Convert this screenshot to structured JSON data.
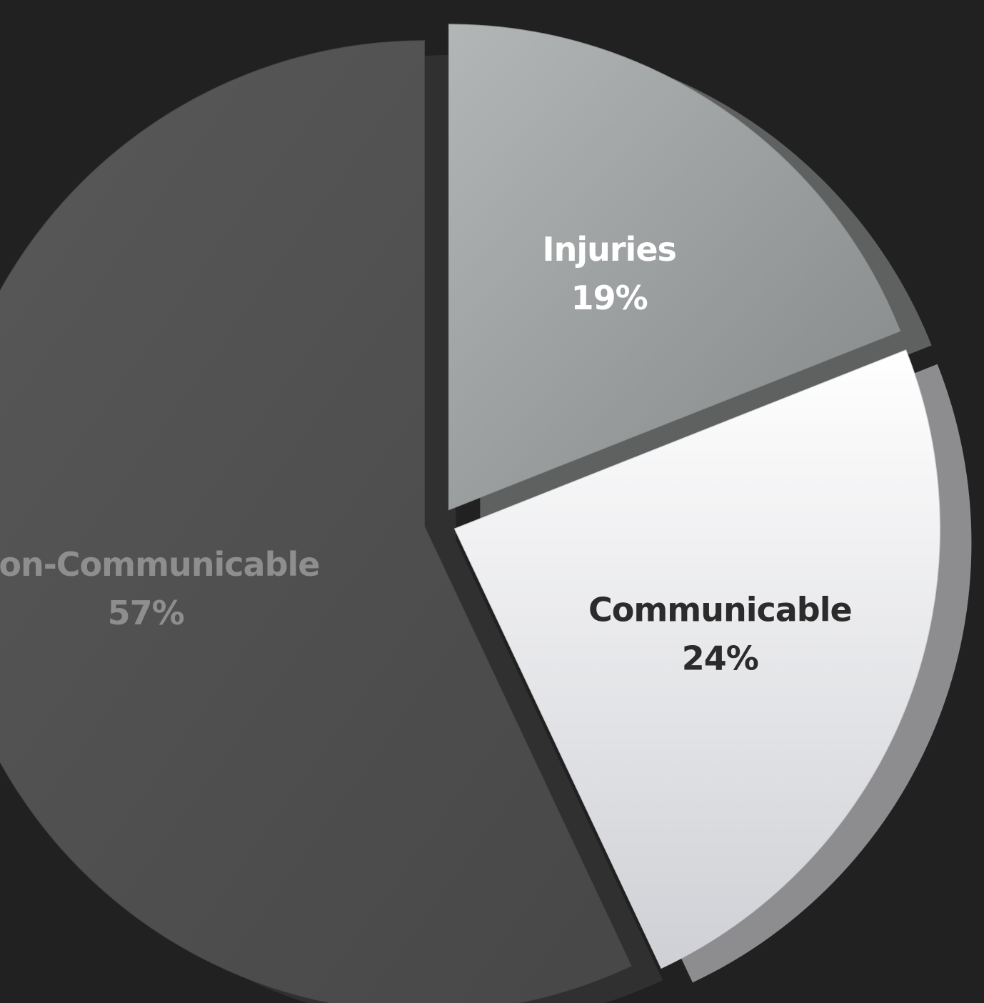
{
  "chart_data": {
    "type": "pie",
    "style": "3d-exploded",
    "slices": [
      {
        "label": "Injuries",
        "value": 19,
        "value_label": "19%",
        "color": "#9a9c9d",
        "label_color": "#ffffff"
      },
      {
        "label": "Communicable",
        "value": 24,
        "value_label": "24%",
        "color": "#e3e3e7",
        "label_color": "#2b2b2b"
      },
      {
        "label": "Non-Communicable",
        "value": 57,
        "value_label": "57%",
        "color": "#4e4e4e",
        "label_color": "#8e8e8e"
      }
    ],
    "start_angle_deg": 0,
    "direction": "clockwise",
    "legend": "none",
    "background": "#212121"
  }
}
